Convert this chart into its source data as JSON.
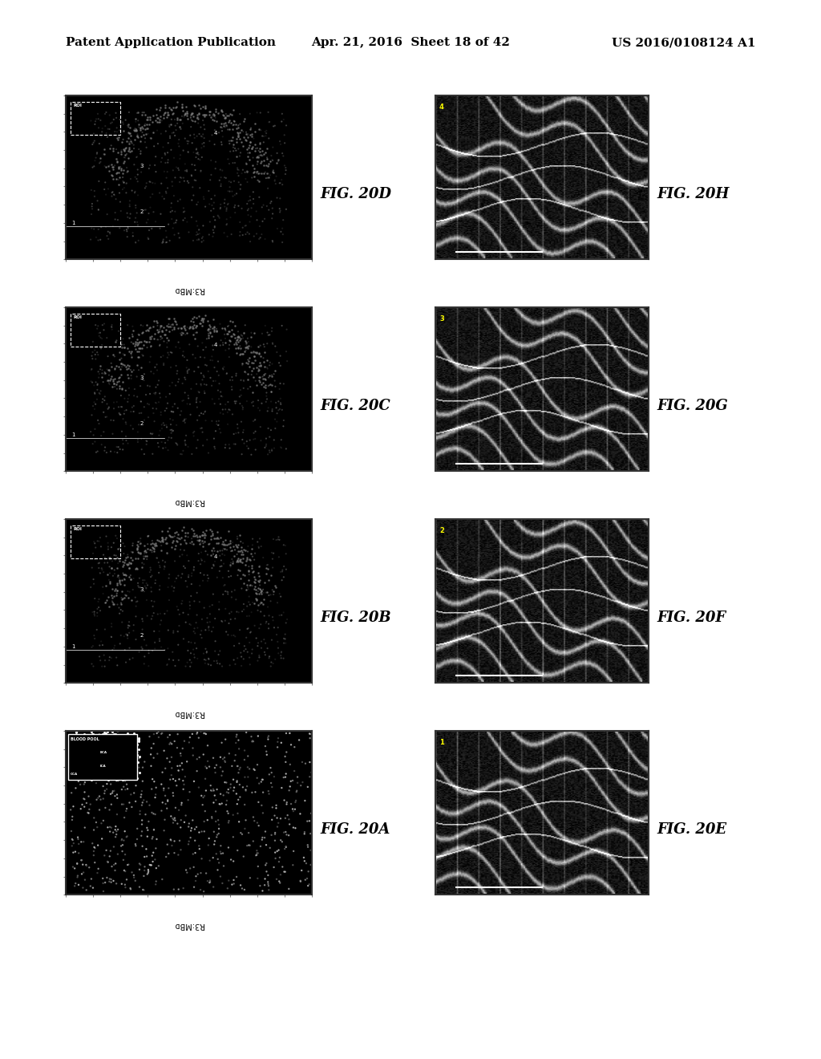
{
  "background_color": "#ffffff",
  "page_header": {
    "left": "Patent Application Publication",
    "center": "Apr. 21, 2016  Sheet 18 of 42",
    "right": "US 2016/0108124 A1",
    "font_size": 11
  },
  "figures": [
    {
      "id": "20A",
      "label": "FIG. 20A",
      "type": "ultrasound_scatter",
      "x_label": "R3:MBᴅ",
      "row": 3,
      "col": 0,
      "annotation": "BLOOD POOL",
      "sub_annotations": [
        "ECA",
        "ICA",
        "CCA"
      ]
    },
    {
      "id": "20B",
      "label": "FIG. 20B",
      "type": "scatter_plot",
      "x_label": "R3:MBᴅ",
      "row": 2,
      "col": 0
    },
    {
      "id": "20C",
      "label": "FIG. 20C",
      "type": "scatter_plot",
      "x_label": "R3:MBᴅ",
      "row": 1,
      "col": 0
    },
    {
      "id": "20D",
      "label": "FIG. 20D",
      "type": "scatter_plot",
      "x_label": "R3:MBᴅ",
      "row": 0,
      "col": 0
    },
    {
      "id": "20E",
      "label": "FIG. 20E",
      "type": "ultrasound_stripe",
      "row": 3,
      "col": 1
    },
    {
      "id": "20F",
      "label": "FIG. 20F",
      "type": "ultrasound_stripe",
      "row": 2,
      "col": 1
    },
    {
      "id": "20G",
      "label": "FIG. 20G",
      "type": "ultrasound_stripe",
      "row": 1,
      "col": 1
    },
    {
      "id": "20H",
      "label": "FIG. 20H",
      "type": "ultrasound_stripe",
      "row": 0,
      "col": 1
    }
  ]
}
